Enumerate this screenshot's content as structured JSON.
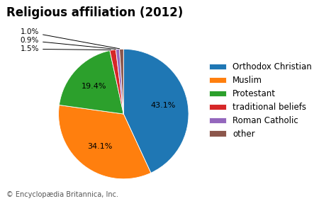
{
  "chart_data": {
    "type": "pie",
    "title": "Religious affiliation (2012)",
    "categories": [
      "Orthodox Christian",
      "Muslim",
      "Protestant",
      "traditional beliefs",
      "Roman Catholic",
      "other"
    ],
    "values": [
      43.1,
      34.1,
      19.4,
      1.5,
      0.9,
      1.0
    ],
    "data_labels": true,
    "value_labels": [
      "43.1%",
      "34.1%",
      "19.4%",
      "1.5%",
      "0.9%",
      "1.0%"
    ],
    "legend": "center left",
    "annotations": [
      "© Encyclopædia Britannica, Inc."
    ]
  }
}
